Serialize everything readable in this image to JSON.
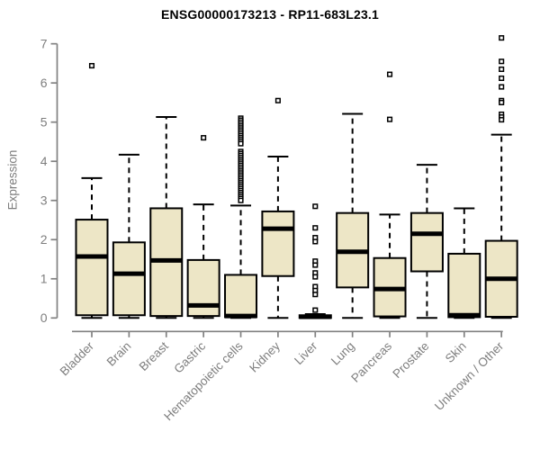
{
  "chart_data": {
    "type": "boxplot",
    "title": "ENSG00000173213 - RP11-683L23.1",
    "ylabel": "Expression",
    "xlabel": "",
    "ylim": [
      0,
      7
    ],
    "yticks": [
      0,
      1,
      2,
      3,
      4,
      5,
      6,
      7
    ],
    "grid": "off",
    "legend": "none",
    "categories": [
      "Bladder",
      "Brain",
      "Breast",
      "Gastric",
      "Hematopoietic cells",
      "Kidney",
      "Liver",
      "Lung",
      "Pancreas",
      "Prostate",
      "Skin",
      "Unknown / Other"
    ],
    "series": [
      {
        "label": "Bladder",
        "whisker_low": 0,
        "q1": 0.07,
        "median": 1.57,
        "q3": 2.51,
        "whisker_high": 3.57,
        "outliers": [
          6.44
        ]
      },
      {
        "label": "Brain",
        "whisker_low": 0,
        "q1": 0.07,
        "median": 1.13,
        "q3": 1.93,
        "whisker_high": 4.17,
        "outliers": []
      },
      {
        "label": "Breast",
        "whisker_low": 0,
        "q1": 0.05,
        "median": 1.47,
        "q3": 2.8,
        "whisker_high": 5.13,
        "outliers": []
      },
      {
        "label": "Gastric",
        "whisker_low": 0,
        "q1": 0.05,
        "median": 0.32,
        "q3": 1.48,
        "whisker_high": 2.9,
        "outliers": [
          4.6
        ]
      },
      {
        "label": "Hematopoietic cells",
        "whisker_low": 0,
        "q1": 0.02,
        "median": 0.05,
        "q3": 1.1,
        "whisker_high": 2.87,
        "outliers": [
          5.1,
          5.05,
          5.0,
          4.95,
          4.9,
          4.85,
          4.8,
          4.75,
          4.7,
          4.65,
          4.6,
          4.55,
          4.5,
          4.45,
          4.25,
          4.2,
          4.15,
          4.1,
          4.05,
          4.0,
          3.95,
          3.9,
          3.85,
          3.8,
          3.75,
          3.7,
          3.65,
          3.6,
          3.55,
          3.5,
          3.45,
          3.4,
          3.35,
          3.3,
          3.25,
          3.2,
          3.15,
          3.1,
          3.05,
          3.0
        ]
      },
      {
        "label": "Kidney",
        "whisker_low": 0,
        "q1": 1.07,
        "median": 2.28,
        "q3": 2.72,
        "whisker_high": 4.12,
        "outliers": [
          5.55
        ]
      },
      {
        "label": "Liver",
        "whisker_low": 0,
        "q1": 0.0,
        "median": 0.03,
        "q3": 0.07,
        "whisker_high": 0.1,
        "outliers": [
          2.85,
          2.3,
          2.05,
          1.95,
          1.45,
          1.35,
          1.15,
          1.05,
          0.8,
          0.7,
          0.6,
          0.2
        ]
      },
      {
        "label": "Lung",
        "whisker_low": 0,
        "q1": 0.78,
        "median": 1.69,
        "q3": 2.68,
        "whisker_high": 5.21,
        "outliers": []
      },
      {
        "label": "Pancreas",
        "whisker_low": 0,
        "q1": 0.04,
        "median": 0.74,
        "q3": 1.53,
        "whisker_high": 2.64,
        "outliers": [
          6.22,
          5.07
        ]
      },
      {
        "label": "Prostate",
        "whisker_low": 0,
        "q1": 1.19,
        "median": 2.15,
        "q3": 2.68,
        "whisker_high": 3.91,
        "outliers": []
      },
      {
        "label": "Skin",
        "whisker_low": 0,
        "q1": 0.02,
        "median": 0.07,
        "q3": 1.64,
        "whisker_high": 2.8,
        "outliers": []
      },
      {
        "label": "Unknown / Other",
        "whisker_low": 0,
        "q1": 0.03,
        "median": 1.0,
        "q3": 1.97,
        "whisker_high": 4.68,
        "outliers": [
          7.15,
          6.55,
          6.35,
          6.12,
          5.9,
          5.55,
          5.5,
          5.2,
          5.13,
          5.06
        ]
      }
    ]
  },
  "colors": {
    "box_fill": "#EDE6C6",
    "box_border": "#000000",
    "median": "#000000",
    "whisker": "#000000",
    "outlier": "#000000",
    "axis": "#818181",
    "tick_label": "#7E7E7E",
    "title": "#000000"
  }
}
